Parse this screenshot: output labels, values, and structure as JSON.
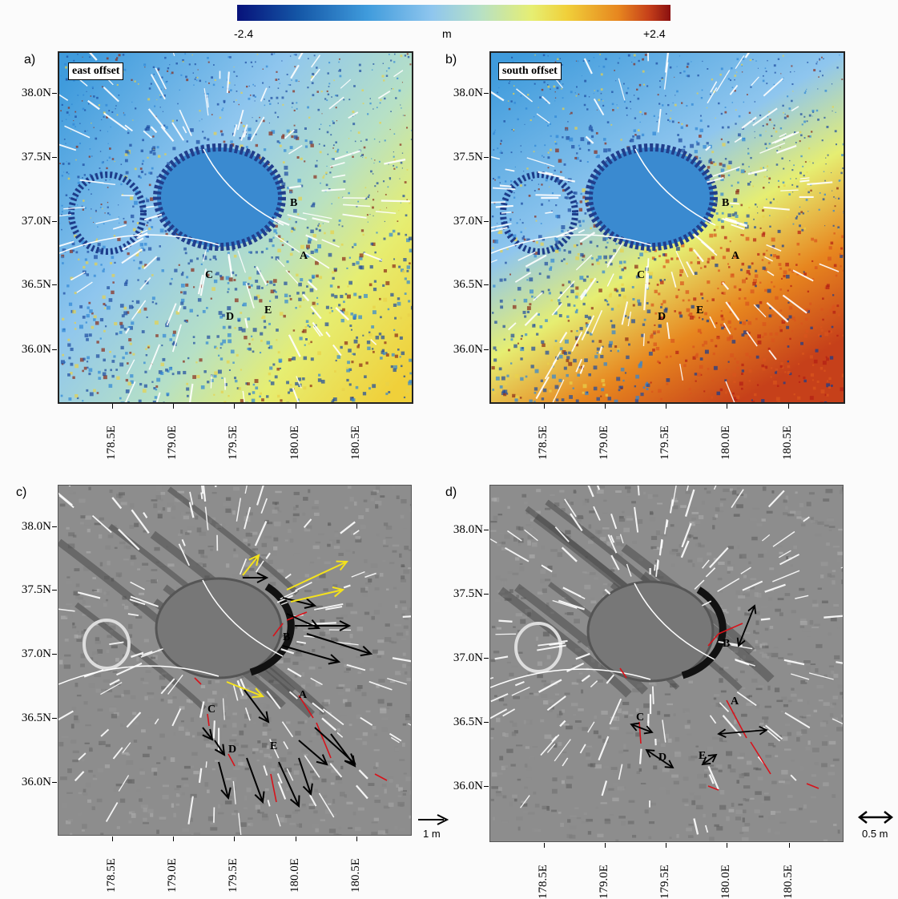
{
  "colorbar": {
    "min_label": "-2.4",
    "unit_label": "m",
    "max_label": "+2.4",
    "colors": [
      "#07127a",
      "#1456a6",
      "#3f9bdc",
      "#8fc6ee",
      "#b6e0c6",
      "#e6ee72",
      "#f0d03a",
      "#e7861f",
      "#c6401a",
      "#8a1010"
    ]
  },
  "y_ticks": [
    "38.0N",
    "37.5N",
    "37.0N",
    "36.5N",
    "36.0N"
  ],
  "x_ticks": [
    "178.5E",
    "179.0E",
    "179.5E",
    "180.0E",
    "180.5E"
  ],
  "panels": {
    "a": {
      "label": "a)",
      "tag": "east offset"
    },
    "b": {
      "label": "b)",
      "tag": "south offset"
    },
    "c": {
      "label": "c)"
    },
    "d": {
      "label": "d)"
    }
  },
  "features": [
    "A",
    "B",
    "C",
    "D",
    "E"
  ],
  "scales": {
    "c": {
      "label": "1 m"
    },
    "d": {
      "label": "0.5 m"
    }
  }
}
